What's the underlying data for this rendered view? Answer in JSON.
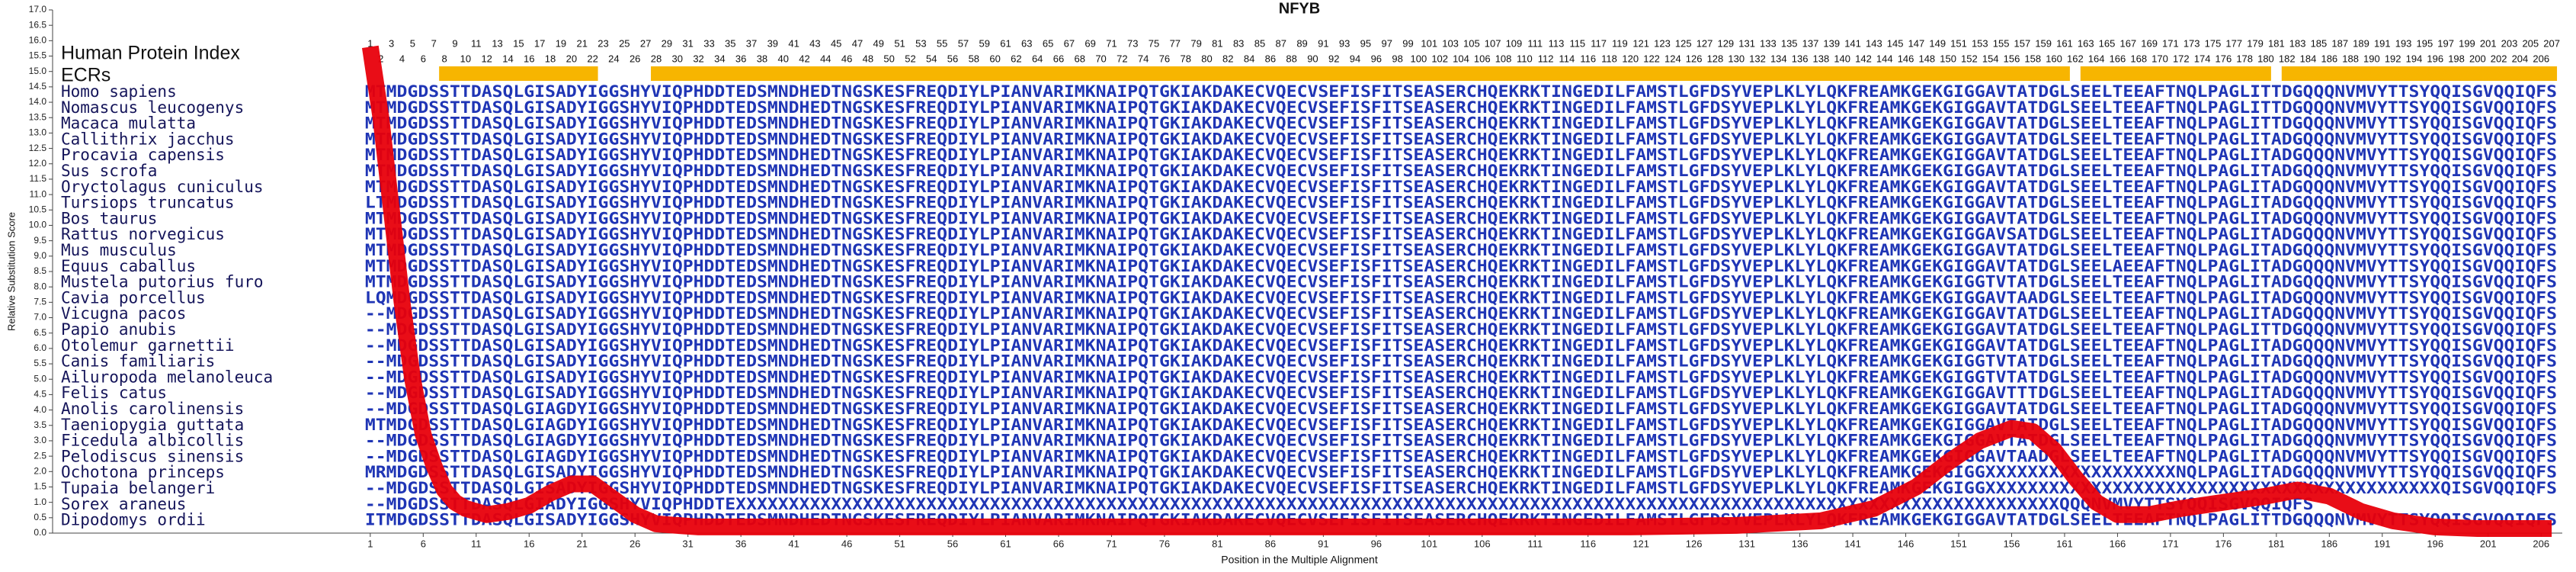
{
  "chart_data": {
    "type": "line",
    "title": "NFYB",
    "x_label": "Position in the Multiple Alignment",
    "y_label": "Relative Substitution Score",
    "index_title": "Human Protein Index",
    "ecr_title": "ECRs",
    "color": "#e8000b",
    "ecr_color": "#f7b500",
    "sequence_color": "#1f35b5",
    "name_color": "#15155a",
    "xlim": [
      -29,
      208
    ],
    "ylim": [
      0,
      17
    ],
    "xticks": [
      1,
      6,
      11,
      16,
      21,
      26,
      31,
      36,
      41,
      46,
      51,
      56,
      61,
      66,
      71,
      76,
      81,
      86,
      91,
      96,
      101,
      106,
      111,
      116,
      121,
      126,
      131,
      136,
      141,
      146,
      151,
      156,
      161,
      166,
      171,
      176,
      181,
      186,
      191,
      196,
      201,
      206
    ],
    "yticks": [
      {
        "value": 0,
        "label": "0.0"
      },
      0.5,
      {
        "value": 1,
        "label": "1.0"
      },
      1.5,
      {
        "value": 2,
        "label": "2.0"
      },
      2.5,
      {
        "value": 3,
        "label": "3.0"
      },
      3.5,
      {
        "value": 4,
        "label": "4.0"
      },
      4.5,
      {
        "value": 5,
        "label": "5.0"
      },
      5.5,
      {
        "value": 6,
        "label": "6.0"
      },
      6.5,
      {
        "value": 7,
        "label": "7.0"
      },
      7.5,
      {
        "value": 8,
        "label": "8.0"
      },
      8.5,
      {
        "value": 9,
        "label": "9.0"
      },
      9.5,
      {
        "value": 10,
        "label": "10.0"
      },
      10.5,
      {
        "value": 11,
        "label": "11.0"
      },
      11.5,
      {
        "value": 12,
        "label": "12.0"
      },
      12.5,
      {
        "value": 13,
        "label": "13.0"
      },
      13.5,
      {
        "value": 14,
        "label": "14.0"
      },
      14.5,
      {
        "value": 15,
        "label": "15.0"
      },
      15.5,
      {
        "value": 16,
        "label": "16.0"
      },
      16.5,
      {
        "value": 17,
        "label": "17.0"
      }
    ],
    "x": [
      1,
      2,
      3,
      4,
      5,
      6,
      7,
      8,
      9,
      10,
      12,
      14,
      16,
      18,
      20,
      22,
      24,
      26,
      28,
      32,
      40,
      60,
      80,
      100,
      120,
      130,
      138,
      143,
      147,
      150,
      153,
      156,
      158,
      160,
      162,
      164,
      166,
      169,
      172,
      176,
      180,
      183,
      186,
      189,
      192,
      196,
      200,
      207
    ],
    "values": [
      15.8,
      13.5,
      10.5,
      7.5,
      5.0,
      3.2,
      2.2,
      1.4,
      1.0,
      0.8,
      0.6,
      0.7,
      0.9,
      1.3,
      1.6,
      1.6,
      1.1,
      0.6,
      0.3,
      0.2,
      0.2,
      0.2,
      0.2,
      0.2,
      0.2,
      0.25,
      0.4,
      0.8,
      1.5,
      2.3,
      3.0,
      3.4,
      3.3,
      2.7,
      1.8,
      1.0,
      0.6,
      0.6,
      0.8,
      1.0,
      1.2,
      1.4,
      1.2,
      0.7,
      0.4,
      0.2,
      0.15,
      0.15
    ],
    "index_labels": [
      1,
      2,
      3,
      4,
      5,
      6,
      7,
      8,
      9,
      10,
      11,
      12,
      13,
      14,
      15,
      16,
      17,
      18,
      19,
      20,
      21,
      22,
      23,
      24,
      25,
      26,
      27,
      28,
      29,
      30,
      31,
      32,
      33,
      34,
      35,
      36,
      37,
      38,
      39,
      40,
      41,
      42,
      43,
      44,
      45,
      46,
      47,
      48,
      49,
      50,
      51,
      52,
      53,
      54,
      55,
      56,
      57,
      58,
      59,
      60,
      61,
      62,
      63,
      64,
      65,
      66,
      67,
      68,
      69,
      70,
      71,
      72,
      73,
      74,
      75,
      76,
      77,
      78,
      79,
      80,
      81,
      82,
      83,
      84,
      85,
      86,
      87,
      88,
      89,
      90,
      91,
      92,
      93,
      94,
      95,
      96,
      97,
      98,
      99,
      100,
      101,
      102,
      103,
      104,
      105,
      106,
      107,
      108,
      109,
      110,
      111,
      112,
      113,
      114,
      115,
      116,
      117,
      118,
      119,
      120,
      121,
      122,
      123,
      124,
      125,
      126,
      127,
      128,
      129,
      130,
      131,
      132,
      133,
      134,
      135,
      136,
      137,
      138,
      139,
      140,
      141,
      142,
      143,
      144,
      145,
      146,
      147,
      148,
      149,
      150,
      151,
      152,
      153,
      154,
      155,
      156,
      157,
      158,
      159,
      160,
      161,
      162,
      163,
      164,
      165,
      166,
      167,
      168,
      169,
      170,
      171,
      172,
      173,
      174,
      175,
      176,
      177,
      178,
      179,
      180,
      181,
      182,
      183,
      184,
      185,
      186,
      187,
      188,
      189,
      190,
      191,
      192,
      193,
      194,
      195,
      196,
      197,
      198,
      199,
      200,
      201,
      202,
      203,
      204,
      205,
      206,
      207
    ],
    "ecrs": [
      [
        8,
        22
      ],
      [
        28,
        161
      ],
      [
        163,
        180
      ],
      [
        182,
        207
      ]
    ],
    "species": [
      "Homo sapiens",
      "Nomascus leucogenys",
      "Macaca mulatta",
      "Callithrix jacchus",
      "Procavia capensis",
      "Sus scrofa",
      "Oryctolagus cuniculus",
      "Tursiops truncatus",
      "Bos taurus",
      "Rattus norvegicus",
      "Mus musculus",
      "Equus caballus",
      "Mustela putorius furo",
      "Cavia porcellus",
      "Vicugna pacos",
      "Papio anubis",
      "Otolemur garnettii",
      "Canis familiaris",
      "Ailuropoda melanoleuca",
      "Felis catus",
      "Anolis carolinensis",
      "Taeniopygia guttata",
      "Ficedula albicollis",
      "Pelodiscus sinensis",
      "Ochotona princeps",
      "Tupaia belangeri",
      "Sorex araneus",
      "Dipodomys ordii"
    ],
    "sequences": [
      "MTMDGDSSTTDASQLGISADYIGGSHYVIQPHDDTEDSMNDHEDTNGSKESFREQDIYLPIANVARIMKNAIPQTGKIAKDAKECVQECVSEFISFITSEASERCHQEKRKTINGEDILFAMSTLGFDSYVEPLKLYLQKFREAMKGEKGIGGAVTATDGLSEELTEEAFTNQLPAGLITTDGQQQNVMVYTTSYQQISGVQQIQFS",
      "MTMDGDSSTTDASQLGISADYIGGSHYVIQPHDDTEDSMNDHEDTNGSKESFREQDIYLPIANVARIMKNAIPQTGKIAKDAKECVQECVSEFISFITSEASERCHQEKRKTINGEDILFAMSTLGFDSYVEPLKLYLQKFREAMKGEKGIGGAVTATDGLSEELTEEAFTNQLPAGLITTDGQQQNVMVYTTSYQQISGVQQIQFS",
      "MTMDGDSSTTDASQLGISADYIGGSHYVIQPHDDTEDSMNDHEDTNGSKESFREQDIYLPIANVARIMKNAIPQTGKIAKDAKECVQECVSEFISFITSEASERCHQEKRKTINGEDILFAMSTLGFDSYVEPLKLYLQKFREAMKGEKGIGGAVTATDGLSEELTEEAFTNQLPAGLITTDGQQQNVMVYTTSYQQISGVQQIQFS",
      "MTMDGDSSTTDASQLGISADYIGGSHYVIQPHDDTEDSMNDHEDTNGSKESFREQDIYLPIANVARIMKNAIPQTGKIAKDAKECVQECVSEFISFITSEASERCHQEKRKTINGEDILFAMSTLGFDSYVEPLKLYLQKFREAMKGEKGIGGAVTATDGLSEELTEEAFTNQLPAGLITADGQQQNVMVYTTSYQQISGVQQIQFS",
      "MTMDGDSSTTDASQLGISADYIGGSHYVIQPHDDTEDSMNDHEDTNGSKESFREQDIYLPIANVARIMKNAIPQTGKIAKDAKECVQECVSEFISFITSEASERCHQEKRKTINGEDILFAMSTLGFDSYVEPLKLYLQKFREAMKGEKGIGGAVTATDGLSEELTEEAFTNQLPAGLITADGQQQNVMVYTTSYQQISGVQQIQFS",
      "MTMDGDSSTTDASQLGISADYIGGSHYVIQPHDDTEDSMNDHEDTNGSKESFREQDIYLPIANVARIMKNAIPQTGKIAKDAKECVQECVSEFISFITSEASERCHQEKRKTINGEDILFAMSTLGFDSYVEPLKLYLQKFREAMKGEKGIGGAVTATDGLSEELTEEAFTNQLPAGLITADGQQQNVMVYTTSYQQISGVQQIQFS",
      "MTMDGDSSTTDASQLGISADYIGGSHYVIQPHDDTEDSMNDHEDTNGSKESFREQDIYLPIANVARIMKNAIPQTGKIAKDAKECVQECVSEFISFITSEASERCHQEKRKTINGEDILFAMSTLGFDSYVEPLKLYLQKFREAMKGEKGIGGAVTATDGLSEELTEEAFTNQLPAGLITADGQQQNVMVYTTSYQQISGVQQIQFS",
      "LTMDGDSSTTDASQLGISADYIGGSHYVIQPHDDTEDSMNDHEDTNGSKESFREQDIYLPIANVARIMKNAIPQTGKIAKDAKECVQECVSEFISFITSEASERCHQEKRKTINGEDILFAMSTLGFDSYVEPLKLYLQKFREAMKGEKGIGGAVTATDGLSEELTEEAFTNQLPAGLITADGQQQNVMVYTTSYQQISGVQQIQFS",
      "MTMDGDSSTTDASQLGISADYIGGSHYVIQPHDDTEDSMNDHEDTNGSKESFREQDIYLPIANVARIMKNAIPQTGKIAKDAKECVQECVSEFISFITSEASERCHQEKRKTINGEDILFAMSTLGFDSYVEPLKLYLQKFREAMKGEKGIGGAVTATDGLSEELTEEAFTNQLPAGLITADGQQQNVMVYTTSYQQISGVQQIQFS",
      "MTMDGDSSTTDASQLGISADYIGGSHYVIQPHDDTEDSMNDHEDTNGSKESFREQDIYLPIANVARIMKNAIPQTGKIAKDAKECVQECVSEFISFITSEASERCHQEKRKTINGEDILFAMSTLGFDSYVEPLKLYLQKFREAMKGEKGIGGAVSATDGLSEELTEEAFTNQLPAGLITADGQQQNVMVYTTSYQQISGVQQIQFS",
      "MTMDGDSSTTDASQLGISADYIGGSHYVIQPHDDTEDSMNDHEDTNGSKESFREQDIYLPIANVARIMKNAIPQTGKIAKDAKECVQECVSEFISFITSEASERCHQEKRKTINGEDILFAMSTLGFDSYVEPLKLYLQKFREAMKGEKGIGGAVTATDGLSEELTEEAFTNQLPAGLITADGQQQNVMVYTTSYQQISGVQQIQFS",
      "MTMDGDSSTTDASQLGISADYIGGSHYVIQPHDDTEDSMNDHEDTNGSKESFREQDIYLPIANVARIMKNAIPQTGKIAKDAKECVQECVSEFISFITSEASERCHQEKRKTINGEDILFAMSTLGFDSYVEPLKLYLQKFREAMKGEKGIGGAVTATDGLSEELAEEAFTNQLPAGLITADGQQQNVMVYTTSYQQISGVQQIQFS",
      "MTMDGDSSTTDASQLGISADYIGGSHYVIQPHDDTEDSMNDHEDTNGSKESFREQDIYLPIANVARIMKNAIPQTGKIAKDAKECVQECVSEFISFITSEASERCHQEKRKTINGEDILFAMSTLGFDSYVEPLKLYLQKFREAMKGEKGIGGTVTATDGLSEELTEEAFTNQLPAGLITADGQQQNVMVYTTSYQQISGVQQIQFS",
      "LQMDGDSSTTDASQLGISADYIGGSHYVIQPHDDTEDSMNDHEDTNGSKESFREQDIYLPIANVARIMKNAIPQTGKIAKDAKECVQECVSEFISFITSEASERCHQEKRKTINGEDILFAMSTLGFDSYVEPLKLYLQKFREAMKGEKGIGGAVTAADGLSEELTEEAFTNQLPAGLITADGQQQNVMVYTTSYQQISGVQQIQFS",
      "--MDGDSSTTDASQLGISADYIGGSHYVIQPHDDTEDSMNDHEDTNGSKESFREQDIYLPIANVARIMKNAIPQTGKIAKDAKECVQECVSEFISFITSEASERCHQEKRKTINGEDILFAMSTLGFDSYVEPLKLYLQKFREAMKGEKGIGGAVTATDGLSEELTEEAFTNQLPAGLITADGQQQNVMVYTTSYQQISGVQQIQFS",
      "--MDGDSSTTDASQLGISADYIGGSHYVIQPHDDTEDSMNDHEDTNGSKESFREQDIYLPIANVARIMKNAIPQTGKIAKDAKECVQECVSEFISFITSEASERCHQEKRKTINGEDILFAMSTLGFDSYVEPLKLYLQKFREAMKGEKGIGGAVTATDGLSEELTEEAFTNQLPAGLITTDGQQQNVMVYTTSYQQISGVQQIQFS",
      "--MDGDSSTTDASQLGISADYIGGSHYVIQPHDDTEDSMNDHEDTNGSKESFREQDIYLPIANVARIMKNAIPQTGKIAKDAKECVQECVSEFISFITSEASERCHQEKRKTINGEDILFAMSTLGFDSYVEPLKLYLQKFREAMKGEKGIGGAVTATDGLSEELTEEAFTNQLPAGLITADGQQQNVMVYTTSYQQISGVQQIQFS",
      "--MDGDSSTTDASQLGISADYIGGSHYVIQPHDDTEDSMNDHEDTNGSKESFREQDIYLPIANVARIMKNAIPQTGKIAKDAKECVQECVSEFISFITSEASERCHQEKRKTINGEDILFAMSTLGFDSYVEPLKLYLQKFREAMKGEKGIGGTVTATDGLSEELTEEAFTNQLPAGLITADGQQQNVMVYTTSYQQISGVQQIQFS",
      "--MDGDSSTTDASQLGISADYIGGSHYVIQPHDDTEDSMNDHEDTNGSKESFREQDIYLPIANVARIMKNAIPQTGKIAKDAKECVQECVSEFISFITSEASERCHQEKRKTINGEDILFAMSTLGFDSYVEPLKLYLQKFREAMKGEKGIGGTVTATDGLSEELTEEAFTNQLPAGLITADGQQQNVMVYTTSYQQISGVQQIQFS",
      "--MDGDSSTTDASQLGISADYIGGSHYVIQPHDDTEDSMNDHEDTNGSKESFREQDIYLPIANVARIMKNAIPQTGKIAKDAKECVQECVSEFISFITSEASERCHQEKRKTINGEDILFAMSTLGFDSYVEPLKLYLQKFREAMKGEKGIGGAVTTTDGLSEELTEEAFTNQLPAGLITADGQQQNVMVYTTSYQQISGVQQIQFS",
      "--MDGDSSTTDASQLGIAGDYIGGSHYVIQPHDDTEDSMNDHEDTNGSKESFREQDIYLPIANVARIMKNAIPQTGKIAKDAKECVQECVSEFISFITSEASERCHQEKRKTINGEDILFAMSTLGFDSYVEPLKLYLQKFREAMKGEKGIGGAVTATDGLSEELTEEAFTNQLPAGLITADGQQQNVMVYTTSYQQISGVQQIQFS",
      "MTMDGDSSTTDASQLGIAGDYIGGSHYVIQPHDDTEDSMNDHEDTNGSKESFREQDIYLPIANVARIMKNAIPQTGKIAKDAKECVQECVSEFISFITSEASERCHQEKRKTINGEDILFAMSTLGFDSYVEPLKLYLQKFREAMKGEKGIGGAVTATDGLSEELTEEAFTNQLPAGLITADGQQQNVMVYTTSYQQISGVQQIQFS",
      "--MDGDSSTTDASQLGIAGDYIGGSHYVIQPHDDTEDSMNDHEDTNGSKESFREQDIYLPIANVARIMKNAIPQTGKIAKDAKECVQECVSEFISFITSEASERCHQEKRKTINGEDILFAMSTLGFDSYVEPLKLYLQKFREAMKGEKGIGGAVTATDGLSEELTEEAFTNQLPAGLITADGQQQNVMVYTTSYQQISGVQQIQFS",
      "--MDGDSSTTDASQLGIAGDYIGGSHYVIQPHDDTEDSMNDHEDTNGSKESFREQDIYLPIANVARIMKNAIPQTGKIAKDAKECVQECVSEFISFITSEASERCHQEKRKTINGEDILFAMSTLGFDSYVEPLKLYLQKFREAMKGEKGIGGAVTAADGLSEELTEEAFTNQLPAGLITADGQQQNVMVYTTSYQQISGVQQIQFS",
      "MRMDGDSSTTDASQLGISADYIGGSHYVIQPHDDTEDSMNDHEDTNGSKESFREQDIYLPIANVARIMKNAIPQTGKIAKDAKECVQECVSEFISFITSEASERCHQEKRKTINGEDILFAMSTLGFDSYVEPLKLYLQKFREAMKGEKGIGGXXXXXXXXXXXXXXXXXXNQLPAGLITADGQQQNVMVYTTSYQQISGVQQIQFS",
      "--MDGDSSTTDASQLGISADYIGGSHYVIQPHDDTEDSMNDHEDTNGSKESFREQDIYLPIANVARIMKNAIPQTGKIAKDAKECVQECVSEFISFITSEASERCHQEKRKTINGEDILFAMSTLGFDSYVEPLKLYLQKFREAMKGEKGIGGXXXXXXXXXXXXXXXXXXXXXXXXXXXXXXXXXXXXXXXXXXXQISGVQQIQFS",
      "--MDGDSSTTDASQLGIADYIGGSHYVIQPHDDTEXXXXXXXXXXXXXXXXXXXXXXXXXXXXXXXXXXXXXXXXXXXXXXXXXXXXXXXXXXXXXXXXXXXXXXXXXXXXXXXXXXXXXXXXXXXXXXXXXXXXXXXXXXXXXXXXXXXXXXXXXXXXXQQQNVMVYTTSYQQISGVQQIQFS",
      "ITMDGDSSTTDASQLGISADYIGGSHYVIQPHDDTEDSMNDHEDTNGSKESFREQDIYLPIANVARIMKNAIPQTGKIAKDAKECVQECVSEFISFITSEASERCHQEKRKTINGEDILFAMSTLGFDSYVEPLKLYLQKFREAMKGEKGIGGAVTATDGLSEELTEEAFTNQLPAGLITTDGQQQNVMVYTTSYQQISGVQQIQFS"
    ]
  }
}
